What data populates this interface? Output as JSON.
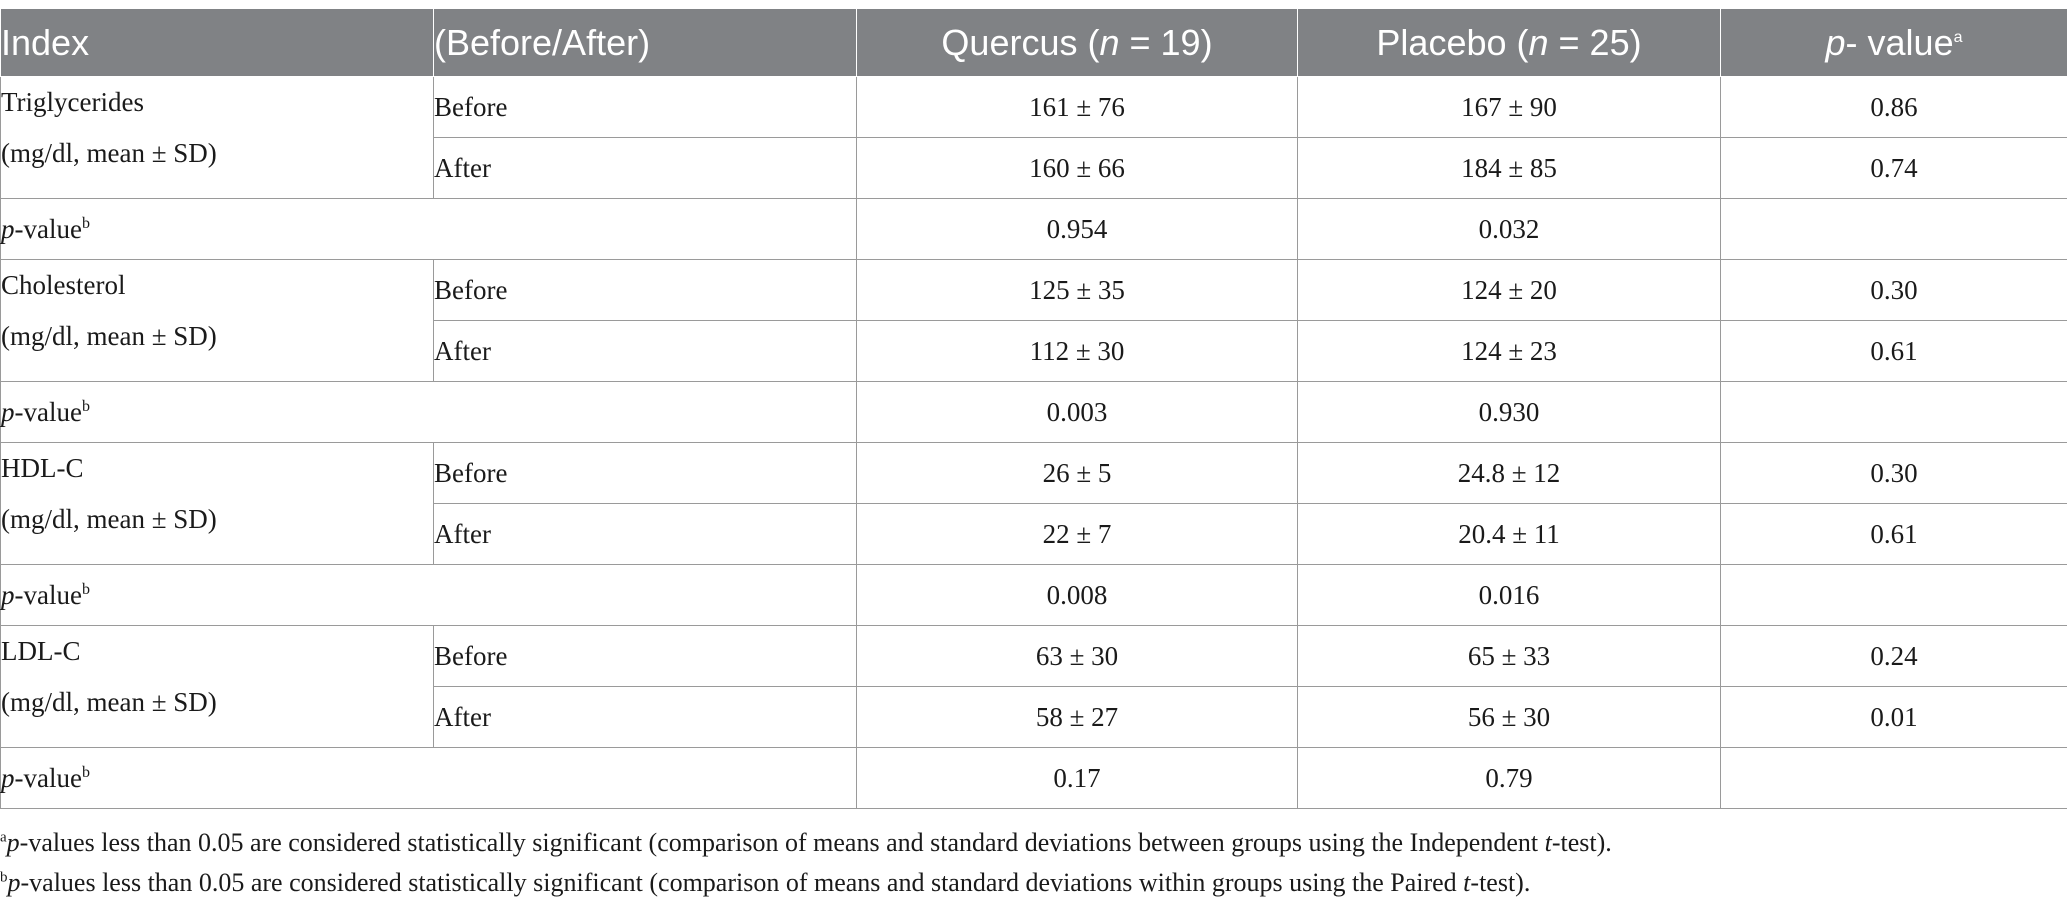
{
  "header": {
    "index": "Index",
    "phase": "(Before/After)",
    "quercus_prefix": "Quercus (",
    "quercus_n": "n",
    "quercus_suffix": " = 19)",
    "placebo_prefix": "Placebo (",
    "placebo_n": "n",
    "placebo_suffix": " = 25)",
    "pvalue_p": "p",
    "pvalue_rest": "- value",
    "pvalue_sup": "a"
  },
  "groups": [
    {
      "name": "Triglycerides",
      "unit": "(mg/dl, mean ± SD)",
      "rows": [
        {
          "phase": "Before",
          "quercus": "161 ± 76",
          "placebo": "167 ± 90",
          "p": "0.86"
        },
        {
          "phase": "After",
          "quercus": "160 ± 66",
          "placebo": "184 ± 85",
          "p": "0.74"
        }
      ],
      "pvalue_row": {
        "label_p": "p",
        "label_rest": "-value",
        "label_sup": "b",
        "quercus": "0.954",
        "placebo": "0.032"
      }
    },
    {
      "name": "Cholesterol",
      "unit": "(mg/dl, mean ± SD)",
      "rows": [
        {
          "phase": "Before",
          "quercus": "125 ± 35",
          "placebo": "124 ± 20",
          "p": "0.30"
        },
        {
          "phase": "After",
          "quercus": "112 ± 30",
          "placebo": "124 ± 23",
          "p": "0.61"
        }
      ],
      "pvalue_row": {
        "label_p": "p",
        "label_rest": "-value",
        "label_sup": "b",
        "quercus": "0.003",
        "placebo": "0.930"
      }
    },
    {
      "name": "HDL-C",
      "unit": "(mg/dl, mean ± SD)",
      "rows": [
        {
          "phase": "Before",
          "quercus": "26 ± 5",
          "placebo": "24.8 ± 12",
          "p": "0.30"
        },
        {
          "phase": "After",
          "quercus": "22 ± 7",
          "placebo": "20.4 ± 11",
          "p": "0.61"
        }
      ],
      "pvalue_row": {
        "label_p": "p",
        "label_rest": "-value",
        "label_sup": "b",
        "quercus": "0.008",
        "placebo": "0.016"
      }
    },
    {
      "name": "LDL-C",
      "unit": "(mg/dl, mean ± SD)",
      "rows": [
        {
          "phase": "Before",
          "quercus": "63 ± 30",
          "placebo": "65 ± 33",
          "p": "0.24"
        },
        {
          "phase": "After",
          "quercus": "58 ± 27",
          "placebo": "56 ± 30",
          "p": "0.01"
        }
      ],
      "pvalue_row": {
        "label_p": "p",
        "label_rest": "-value",
        "label_sup": "b",
        "quercus": "0.17",
        "placebo": "0.79"
      }
    }
  ],
  "footnotes": [
    {
      "sup": "a",
      "p": "p",
      "text1": "-values less than 0.05 are considered statistically significant (comparison of means and standard deviations between groups using the Independent ",
      "t": "t",
      "text2": "-test)."
    },
    {
      "sup": "b",
      "p": "p",
      "text1": "-values less than 0.05 are considered statistically significant (comparison of means and standard deviations within groups using the Paired ",
      "t": "t",
      "text2": "-test)."
    }
  ],
  "colors": {
    "header_bg": "#808285",
    "header_text": "#ffffff",
    "border": "#9a9a9a",
    "text": "#1a1a1a"
  }
}
